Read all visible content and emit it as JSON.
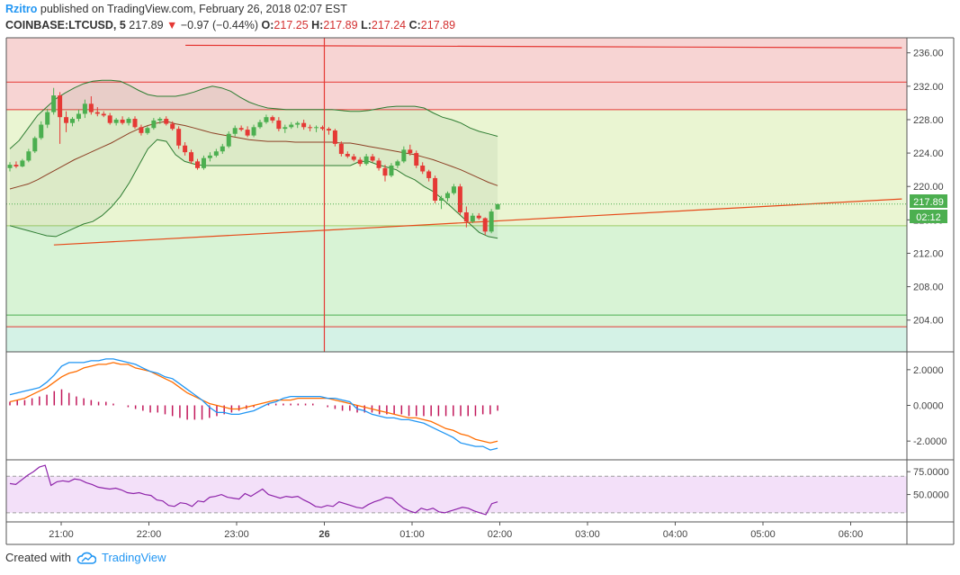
{
  "header": {
    "author": "Rzitro",
    "published": "published on TradingView.com, February 26, 2018 02:07 EST",
    "symbol": "COINBASE:LTCUSD, 5",
    "last": "217.89",
    "change_arrow": "▼",
    "change": "−0.97 (−0.44%)",
    "open_label": "O:",
    "open": "217.25",
    "high_label": "H:",
    "high": "217.89",
    "low_label": "L:",
    "low": "217.24",
    "close_label": "C:",
    "close": "217.89"
  },
  "price_tag": "217.89",
  "timer_tag": "02:12",
  "footer": {
    "created_with": "Created with",
    "brand": "TradingView",
    "brand_icon": "tradingview-cloud-icon"
  },
  "colors": {
    "up": "#4caf50",
    "down": "#e53935",
    "macd": "#2196f3",
    "signal": "#ff6d00",
    "hist": "#c2185b",
    "rsi": "#8e24aa"
  },
  "chart_data": [
    {
      "type": "candlestick",
      "name": "price",
      "ylim": [
        200.2,
        237.8
      ],
      "y_ticks": [
        "236.00",
        "232.00",
        "228.00",
        "224.00",
        "220.00",
        "216.00",
        "212.00",
        "208.00",
        "204.00"
      ],
      "x_ticks": [
        "21:00",
        "22:00",
        "23:00",
        "26",
        "01:00",
        "02:00",
        "03:00",
        "04:00",
        "05:00",
        "06:00"
      ],
      "zones": [
        {
          "from": 229.2,
          "to": 237.8,
          "color": "#f7d4d3"
        },
        {
          "from": 215.3,
          "to": 229.2,
          "color": "#eaf5d2"
        },
        {
          "from": 203.2,
          "to": 215.3,
          "color": "#d8f3d5"
        },
        {
          "from": 200.2,
          "to": 203.2,
          "color": "#d4f2e6"
        }
      ],
      "hlines": [
        {
          "value": 232.5,
          "color": "#e53935"
        },
        {
          "value": 229.2,
          "color": "#e53935"
        },
        {
          "value": 215.3,
          "color": "#9ccc65"
        },
        {
          "value": 204.6,
          "color": "#4caf50"
        },
        {
          "value": 203.2,
          "color": "#e53935"
        }
      ],
      "last_price_line": 217.89,
      "trendline": {
        "from": [
          "20:55",
          213.0
        ],
        "to": [
          "06:35",
          218.5
        ],
        "color": "#e64a19"
      },
      "resistance_line": {
        "from": [
          "22:25",
          236.9
        ],
        "to": [
          "06:35",
          236.6
        ],
        "color": "#e53935"
      },
      "crosshair_time": "00:00",
      "bollinger_upper": [
        224.5,
        225.5,
        227.0,
        228.5,
        229.5,
        230.5,
        231.2,
        231.8,
        232.3,
        232.6,
        232.7,
        232.7,
        232.6,
        232.1,
        231.5,
        231.0,
        230.8,
        230.8,
        230.8,
        231.0,
        231.3,
        231.7,
        232.0,
        231.8,
        231.4,
        230.7,
        230.1,
        229.7,
        229.4,
        229.3,
        229.2,
        229.2,
        229.2,
        229.2,
        229.2,
        229.2,
        229.1,
        229.0,
        229.0,
        229.1,
        229.3,
        229.5,
        229.6,
        229.6,
        229.6,
        229.4,
        228.8,
        228.3,
        228.0,
        227.6,
        227.0,
        226.6,
        226.3,
        226.0
      ],
      "bollinger_mid": [
        219.7,
        220.0,
        220.3,
        220.8,
        221.4,
        222.0,
        222.6,
        223.2,
        223.7,
        224.2,
        224.7,
        225.2,
        225.8,
        226.4,
        226.9,
        227.3,
        227.6,
        227.8,
        227.5,
        227.3,
        227.0,
        226.7,
        226.4,
        226.2,
        226.0,
        225.8,
        225.6,
        225.5,
        225.4,
        225.4,
        225.4,
        225.3,
        225.3,
        225.3,
        225.3,
        225.3,
        225.2,
        225.2,
        225.0,
        224.8,
        224.6,
        224.4,
        224.2,
        224.0,
        223.8,
        223.5,
        223.2,
        222.8,
        222.4,
        222.0,
        221.5,
        221.0,
        220.5,
        220.1
      ],
      "bollinger_lower": [
        215.3,
        215.0,
        214.7,
        214.4,
        214.1,
        214.0,
        214.5,
        215.0,
        215.5,
        215.8,
        216.5,
        217.5,
        218.8,
        220.5,
        222.5,
        224.5,
        225.6,
        225.4,
        223.8,
        223.0,
        222.7,
        222.5,
        222.5,
        222.5,
        222.5,
        222.5,
        222.5,
        222.5,
        222.5,
        222.5,
        222.5,
        222.5,
        222.5,
        222.5,
        222.5,
        222.5,
        222.5,
        222.5,
        223.0,
        223.0,
        222.6,
        222.3,
        222.0,
        221.3,
        220.8,
        220.0,
        219.4,
        218.5,
        217.5,
        216.5,
        215.5,
        214.5,
        214.0,
        213.8
      ],
      "candles": [
        {
          "o": 222.2,
          "h": 222.9,
          "l": 221.8,
          "c": 222.6
        },
        {
          "o": 222.6,
          "h": 223.0,
          "l": 222.2,
          "c": 222.4
        },
        {
          "o": 222.4,
          "h": 223.3,
          "l": 222.3,
          "c": 223.1
        },
        {
          "o": 223.1,
          "h": 224.5,
          "l": 222.9,
          "c": 224.2
        },
        {
          "o": 224.2,
          "h": 226.0,
          "l": 224.0,
          "c": 225.8
        },
        {
          "o": 225.8,
          "h": 227.8,
          "l": 225.6,
          "c": 227.4
        },
        {
          "o": 227.4,
          "h": 229.3,
          "l": 227.0,
          "c": 228.9
        },
        {
          "o": 228.9,
          "h": 231.8,
          "l": 228.6,
          "c": 230.9
        },
        {
          "o": 230.9,
          "h": 231.3,
          "l": 225.1,
          "c": 228.3
        },
        {
          "o": 228.3,
          "h": 229.0,
          "l": 226.5,
          "c": 227.6
        },
        {
          "o": 227.6,
          "h": 228.3,
          "l": 227.2,
          "c": 228.1
        },
        {
          "o": 228.1,
          "h": 229.2,
          "l": 227.8,
          "c": 228.7
        },
        {
          "o": 228.7,
          "h": 230.4,
          "l": 228.2,
          "c": 229.9
        },
        {
          "o": 229.9,
          "h": 230.8,
          "l": 228.6,
          "c": 228.9
        },
        {
          "o": 228.9,
          "h": 229.5,
          "l": 228.4,
          "c": 228.7
        },
        {
          "o": 228.7,
          "h": 229.0,
          "l": 228.3,
          "c": 228.5
        },
        {
          "o": 228.5,
          "h": 228.8,
          "l": 227.4,
          "c": 227.6
        },
        {
          "o": 227.6,
          "h": 228.2,
          "l": 227.3,
          "c": 228.0
        },
        {
          "o": 228.0,
          "h": 228.4,
          "l": 227.4,
          "c": 227.6
        },
        {
          "o": 227.6,
          "h": 228.3,
          "l": 227.3,
          "c": 228.1
        },
        {
          "o": 228.1,
          "h": 228.4,
          "l": 226.9,
          "c": 227.1
        },
        {
          "o": 227.1,
          "h": 227.4,
          "l": 226.1,
          "c": 226.4
        },
        {
          "o": 226.4,
          "h": 227.2,
          "l": 226.2,
          "c": 227.0
        },
        {
          "o": 227.0,
          "h": 228.2,
          "l": 226.8,
          "c": 227.9
        },
        {
          "o": 227.9,
          "h": 228.3,
          "l": 227.5,
          "c": 228.1
        },
        {
          "o": 228.1,
          "h": 228.4,
          "l": 227.3,
          "c": 227.5
        },
        {
          "o": 227.5,
          "h": 227.8,
          "l": 226.7,
          "c": 226.9
        },
        {
          "o": 226.9,
          "h": 227.2,
          "l": 224.5,
          "c": 224.9
        },
        {
          "o": 224.9,
          "h": 225.3,
          "l": 223.7,
          "c": 224.1
        },
        {
          "o": 224.1,
          "h": 224.4,
          "l": 222.7,
          "c": 223.0
        },
        {
          "o": 223.0,
          "h": 223.3,
          "l": 222.0,
          "c": 222.2
        },
        {
          "o": 222.2,
          "h": 223.7,
          "l": 222.0,
          "c": 223.4
        },
        {
          "o": 223.4,
          "h": 224.1,
          "l": 223.0,
          "c": 223.7
        },
        {
          "o": 223.7,
          "h": 224.5,
          "l": 223.5,
          "c": 224.2
        },
        {
          "o": 224.2,
          "h": 225.1,
          "l": 223.9,
          "c": 224.8
        },
        {
          "o": 224.8,
          "h": 226.6,
          "l": 224.6,
          "c": 226.3
        },
        {
          "o": 226.3,
          "h": 227.3,
          "l": 226.0,
          "c": 227.0
        },
        {
          "o": 227.0,
          "h": 227.3,
          "l": 226.6,
          "c": 226.8
        },
        {
          "o": 226.8,
          "h": 227.2,
          "l": 225.9,
          "c": 226.1
        },
        {
          "o": 226.1,
          "h": 227.4,
          "l": 225.9,
          "c": 227.1
        },
        {
          "o": 227.1,
          "h": 228.0,
          "l": 226.9,
          "c": 227.7
        },
        {
          "o": 227.7,
          "h": 228.6,
          "l": 227.5,
          "c": 228.3
        },
        {
          "o": 228.3,
          "h": 228.5,
          "l": 227.6,
          "c": 227.9
        },
        {
          "o": 227.9,
          "h": 228.3,
          "l": 226.6,
          "c": 226.9
        },
        {
          "o": 226.9,
          "h": 227.4,
          "l": 226.4,
          "c": 227.1
        },
        {
          "o": 227.1,
          "h": 227.7,
          "l": 226.9,
          "c": 227.4
        },
        {
          "o": 227.4,
          "h": 227.8,
          "l": 227.0,
          "c": 227.6
        },
        {
          "o": 227.6,
          "h": 228.0,
          "l": 226.8,
          "c": 227.1
        },
        {
          "o": 227.1,
          "h": 227.4,
          "l": 226.6,
          "c": 227.0
        },
        {
          "o": 227.0,
          "h": 227.3,
          "l": 226.5,
          "c": 227.1
        },
        {
          "o": 227.1,
          "h": 227.3,
          "l": 226.7,
          "c": 226.9
        },
        {
          "o": 226.9,
          "h": 227.1,
          "l": 226.2,
          "c": 226.7
        },
        {
          "o": 226.7,
          "h": 226.9,
          "l": 224.8,
          "c": 225.1
        },
        {
          "o": 225.1,
          "h": 225.4,
          "l": 223.6,
          "c": 223.9
        },
        {
          "o": 223.9,
          "h": 224.2,
          "l": 223.4,
          "c": 223.6
        },
        {
          "o": 223.6,
          "h": 223.9,
          "l": 223.0,
          "c": 223.2
        },
        {
          "o": 223.2,
          "h": 223.5,
          "l": 222.4,
          "c": 222.7
        },
        {
          "o": 222.7,
          "h": 223.9,
          "l": 222.5,
          "c": 223.6
        },
        {
          "o": 223.6,
          "h": 223.9,
          "l": 222.9,
          "c": 223.1
        },
        {
          "o": 223.1,
          "h": 223.4,
          "l": 221.9,
          "c": 222.2
        },
        {
          "o": 222.2,
          "h": 222.6,
          "l": 220.6,
          "c": 221.3
        },
        {
          "o": 221.3,
          "h": 222.8,
          "l": 221.1,
          "c": 222.5
        },
        {
          "o": 222.5,
          "h": 223.2,
          "l": 222.2,
          "c": 223.0
        },
        {
          "o": 223.0,
          "h": 224.8,
          "l": 222.8,
          "c": 224.4
        },
        {
          "o": 224.4,
          "h": 225.0,
          "l": 223.7,
          "c": 224.0
        },
        {
          "o": 224.0,
          "h": 224.3,
          "l": 222.2,
          "c": 222.5
        },
        {
          "o": 222.5,
          "h": 222.9,
          "l": 221.5,
          "c": 221.8
        },
        {
          "o": 221.8,
          "h": 222.0,
          "l": 220.6,
          "c": 221.0
        },
        {
          "o": 221.0,
          "h": 221.3,
          "l": 218.0,
          "c": 218.3
        },
        {
          "o": 218.3,
          "h": 218.9,
          "l": 217.3,
          "c": 218.6
        },
        {
          "o": 218.6,
          "h": 219.4,
          "l": 218.2,
          "c": 219.2
        },
        {
          "o": 219.2,
          "h": 220.3,
          "l": 219.0,
          "c": 220.0
        },
        {
          "o": 220.0,
          "h": 220.3,
          "l": 216.6,
          "c": 216.9
        },
        {
          "o": 216.9,
          "h": 217.6,
          "l": 215.1,
          "c": 215.8
        },
        {
          "o": 215.8,
          "h": 216.8,
          "l": 215.6,
          "c": 216.5
        },
        {
          "o": 216.5,
          "h": 216.8,
          "l": 216.0,
          "c": 216.2
        },
        {
          "o": 216.2,
          "h": 216.3,
          "l": 214.2,
          "c": 214.6
        },
        {
          "o": 214.6,
          "h": 217.3,
          "l": 214.4,
          "c": 217.0
        },
        {
          "o": 217.25,
          "h": 217.89,
          "l": 217.24,
          "c": 217.89
        }
      ]
    },
    {
      "type": "line",
      "name": "MACD",
      "ylim": [
        -3.05,
        3.0
      ],
      "y_ticks": [
        "2.0000",
        "0.0000",
        "-2.0000"
      ],
      "series": [
        {
          "values": [
            0.6,
            0.7,
            0.8,
            0.9,
            1.0,
            1.3,
            1.7,
            2.2,
            2.4,
            2.4,
            2.4,
            2.5,
            2.5,
            2.6,
            2.6,
            2.5,
            2.4,
            2.3,
            2.1,
            1.9,
            1.8,
            1.6,
            1.5,
            1.2,
            0.9,
            0.6,
            0.3,
            -0.1,
            -0.4,
            -0.4,
            -0.5,
            -0.5,
            -0.4,
            -0.3,
            -0.1,
            0.1,
            0.2,
            0.4,
            0.5,
            0.5,
            0.5,
            0.5,
            0.5,
            0.4,
            0.4,
            0.3,
            0.2,
            -0.2,
            -0.3,
            -0.5,
            -0.6,
            -0.7,
            -0.7,
            -0.8,
            -0.8,
            -0.9,
            -1.0,
            -1.2,
            -1.4,
            -1.6,
            -1.8,
            -2.1,
            -2.2,
            -2.3,
            -2.3,
            -2.5,
            -2.4
          ]
        },
        {
          "values": [
            0.2,
            0.3,
            0.4,
            0.6,
            0.8,
            1.0,
            1.3,
            1.6,
            1.8,
            1.9,
            2.1,
            2.2,
            2.3,
            2.3,
            2.4,
            2.3,
            2.3,
            2.1,
            2.0,
            1.9,
            1.7,
            1.5,
            1.3,
            1.0,
            0.7,
            0.5,
            0.3,
            0.1,
            0.0,
            -0.1,
            -0.2,
            -0.2,
            -0.1,
            0.0,
            0.1,
            0.2,
            0.3,
            0.3,
            0.3,
            0.4,
            0.4,
            0.4,
            0.4,
            0.4,
            0.3,
            0.2,
            0.1,
            0.0,
            -0.1,
            -0.2,
            -0.3,
            -0.4,
            -0.5,
            -0.6,
            -0.7,
            -0.7,
            -0.8,
            -0.9,
            -1.1,
            -1.3,
            -1.4,
            -1.6,
            -1.7,
            -1.9,
            -2.0,
            -2.1,
            -2.0
          ]
        }
      ],
      "histogram": [
        0.2,
        0.3,
        0.3,
        0.4,
        0.5,
        0.6,
        0.8,
        0.9,
        0.7,
        0.5,
        0.4,
        0.3,
        0.2,
        0.2,
        0.1,
        0.0,
        -0.1,
        -0.2,
        -0.3,
        -0.4,
        -0.4,
        -0.5,
        -0.6,
        -0.7,
        -0.8,
        -0.8,
        -0.8,
        -0.7,
        -0.6,
        -0.5,
        -0.4,
        -0.3,
        -0.2,
        -0.1,
        0.0,
        0.1,
        0.1,
        0.1,
        0.1,
        0.1,
        0.1,
        0.1,
        0.0,
        -0.1,
        -0.2,
        -0.3,
        -0.3,
        -0.4,
        -0.4,
        -0.4,
        -0.5,
        -0.5,
        -0.5,
        -0.5,
        -0.6,
        -0.6,
        -0.6,
        -0.6,
        -0.6,
        -0.6,
        -0.6,
        -0.6,
        -0.6,
        -0.6,
        -0.5,
        -0.5,
        -0.3
      ]
    },
    {
      "type": "line",
      "name": "RSI",
      "ylim": [
        20,
        88
      ],
      "y_ticks": [
        "75.0000",
        "50.0000"
      ],
      "band": [
        30,
        70
      ],
      "values": [
        62,
        61,
        66,
        71,
        75,
        80,
        82,
        60,
        64,
        65,
        64,
        67,
        66,
        63,
        61,
        58,
        57,
        56,
        57,
        55,
        52,
        51,
        52,
        50,
        49,
        44,
        43,
        38,
        37,
        41,
        40,
        37,
        43,
        42,
        47,
        48,
        50,
        47,
        46,
        45,
        51,
        48,
        52,
        56,
        50,
        48,
        46,
        48,
        47,
        48,
        44,
        41,
        37,
        36,
        38,
        37,
        42,
        40,
        38,
        36,
        35,
        39,
        42,
        44,
        47,
        46,
        40,
        35,
        32,
        30,
        35,
        33,
        35,
        31,
        30,
        32,
        34,
        36,
        35,
        32,
        30,
        28,
        40,
        42
      ]
    }
  ]
}
